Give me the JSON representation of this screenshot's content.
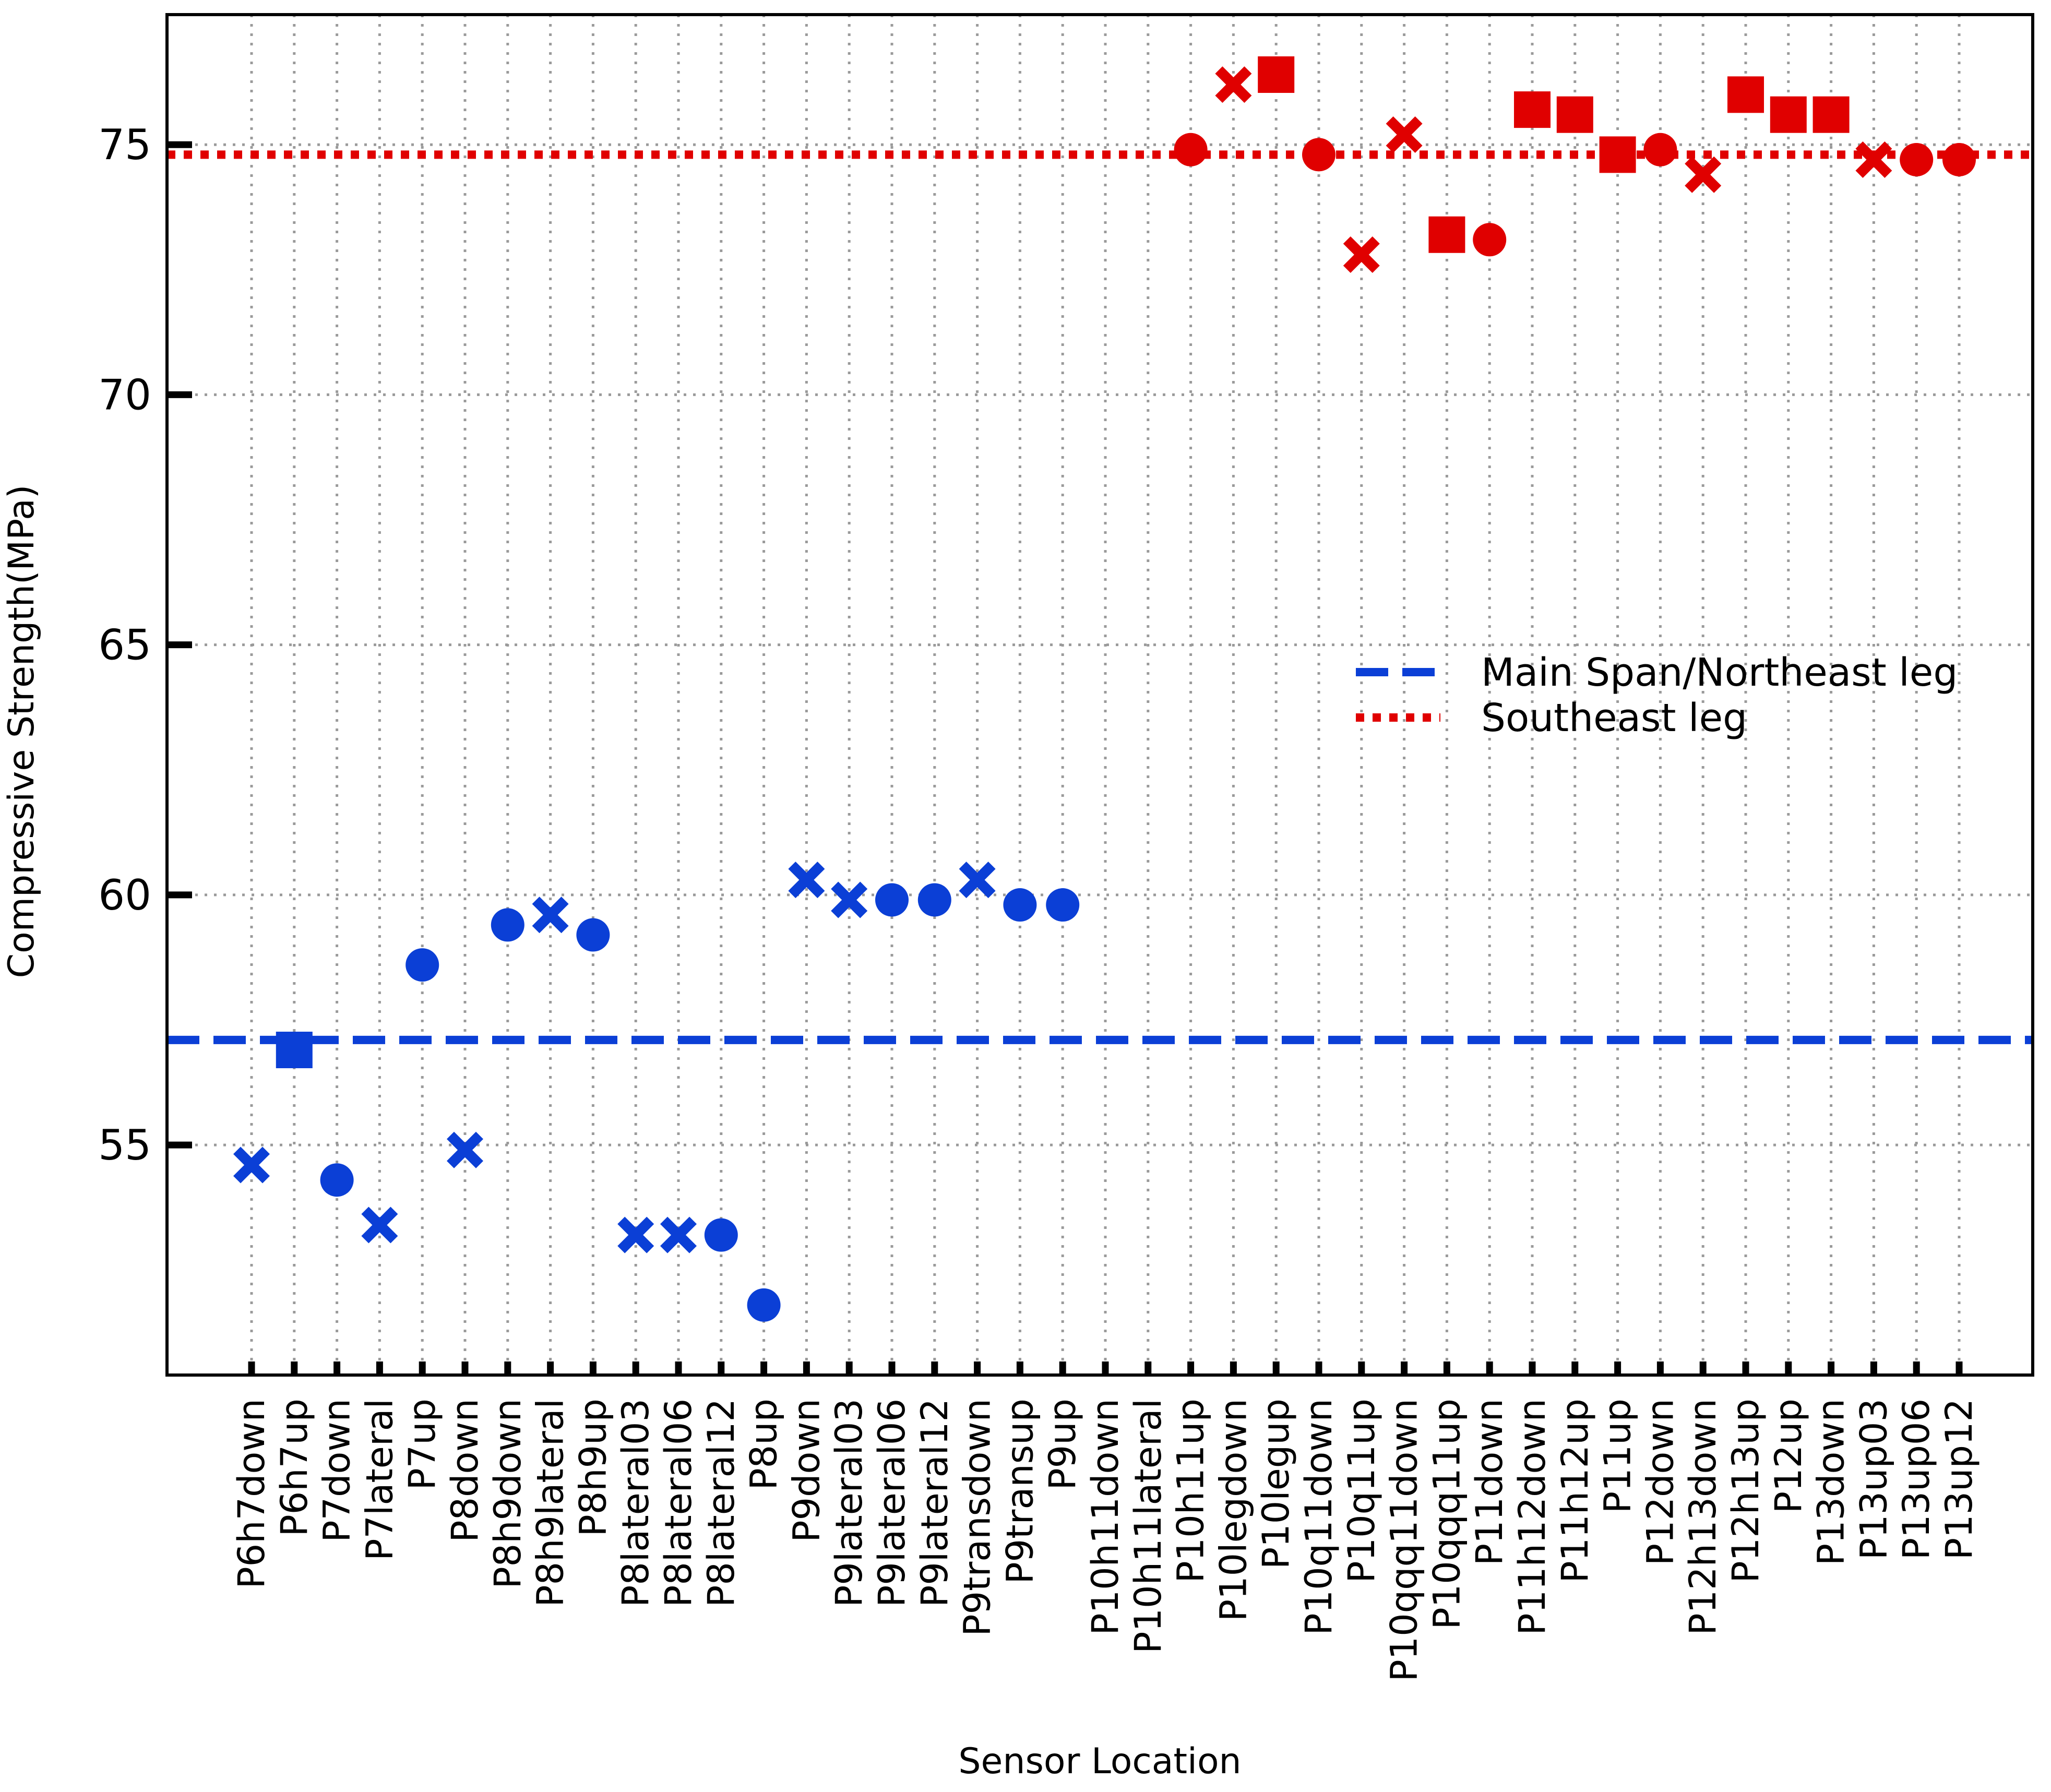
{
  "chart_data": {
    "type": "scatter",
    "xlabel": "Sensor Location",
    "ylabel": "Compressive Strength(MPa)",
    "ylim": [
      50.4,
      77.6
    ],
    "yticks": [
      55,
      60,
      65,
      70,
      75
    ],
    "grid": true,
    "legend_position": "right",
    "categories": [
      "P6h7down",
      "P6h7up",
      "P7down",
      "P7lateral",
      "P7up",
      "P8down",
      "P8h9down",
      "P8h9lateral",
      "P8h9up",
      "P8lateral03",
      "P8lateral06",
      "P8lateral12",
      "P8up",
      "P9down",
      "P9lateral03",
      "P9lateral06",
      "P9lateral12",
      "P9transdown",
      "P9transup",
      "P9up",
      "P10h11down",
      "P10h11lateral",
      "P10h11up",
      "P10legdown",
      "P10legup",
      "P10q11down",
      "P10q11up",
      "P10qqq11down",
      "P10qqq11up",
      "P11down",
      "P11h12down",
      "P11h12up",
      "P11up",
      "P12down",
      "P12h13down",
      "P12h13up",
      "P12up",
      "P13down",
      "P13up03",
      "P13up06",
      "P13up12"
    ],
    "reference_lines": [
      {
        "name": "Main Span/Northeast leg",
        "value": 57.1,
        "style": "dashed",
        "color": "#0b3fd6"
      },
      {
        "name": "Southeast leg",
        "value": 74.8,
        "style": "dotted",
        "color": "#e00000"
      }
    ],
    "series": [
      {
        "color": "#0b3fd6",
        "points": [
          {
            "x": "P6h7down",
            "y": 54.6,
            "marker": "x"
          },
          {
            "x": "P6h7up",
            "y": 56.9,
            "marker": "square"
          },
          {
            "x": "P7down",
            "y": 54.3,
            "marker": "circle"
          },
          {
            "x": "P7lateral",
            "y": 53.4,
            "marker": "x"
          },
          {
            "x": "P7up",
            "y": 58.6,
            "marker": "circle"
          },
          {
            "x": "P8down",
            "y": 54.9,
            "marker": "x"
          },
          {
            "x": "P8h9down",
            "y": 59.4,
            "marker": "circle"
          },
          {
            "x": "P8h9lateral",
            "y": 59.6,
            "marker": "x"
          },
          {
            "x": "P8h9up",
            "y": 59.2,
            "marker": "circle"
          },
          {
            "x": "P8lateral03",
            "y": 53.2,
            "marker": "x"
          },
          {
            "x": "P8lateral06",
            "y": 53.2,
            "marker": "x"
          },
          {
            "x": "P8lateral12",
            "y": 53.2,
            "marker": "circle"
          },
          {
            "x": "P8up",
            "y": 51.8,
            "marker": "circle"
          },
          {
            "x": "P9down",
            "y": 60.3,
            "marker": "x"
          },
          {
            "x": "P9lateral03",
            "y": 59.9,
            "marker": "x"
          },
          {
            "x": "P9lateral06",
            "y": 59.9,
            "marker": "circle"
          },
          {
            "x": "P9lateral12",
            "y": 59.9,
            "marker": "circle"
          },
          {
            "x": "P9transdown",
            "y": 60.3,
            "marker": "x"
          },
          {
            "x": "P9transup",
            "y": 59.8,
            "marker": "circle"
          },
          {
            "x": "P9up",
            "y": 59.8,
            "marker": "circle"
          }
        ]
      },
      {
        "color": "#e00000",
        "points": [
          {
            "x": "P10h11up",
            "y": 74.9,
            "marker": "circle"
          },
          {
            "x": "P10legdown",
            "y": 76.2,
            "marker": "x"
          },
          {
            "x": "P10legup",
            "y": 76.4,
            "marker": "square"
          },
          {
            "x": "P10q11down",
            "y": 74.8,
            "marker": "circle"
          },
          {
            "x": "P10q11up",
            "y": 72.8,
            "marker": "x"
          },
          {
            "x": "P10qqq11down",
            "y": 75.2,
            "marker": "x"
          },
          {
            "x": "P10qqq11up",
            "y": 73.2,
            "marker": "square"
          },
          {
            "x": "P11down",
            "y": 73.1,
            "marker": "circle"
          },
          {
            "x": "P11h12down",
            "y": 75.7,
            "marker": "square"
          },
          {
            "x": "P11h12up",
            "y": 75.6,
            "marker": "square"
          },
          {
            "x": "P11up",
            "y": 74.8,
            "marker": "square"
          },
          {
            "x": "P12down",
            "y": 74.9,
            "marker": "circle"
          },
          {
            "x": "P12h13down",
            "y": 74.4,
            "marker": "x"
          },
          {
            "x": "P12h13up",
            "y": 76.0,
            "marker": "square"
          },
          {
            "x": "P12up",
            "y": 75.6,
            "marker": "square"
          },
          {
            "x": "P13down",
            "y": 75.6,
            "marker": "square"
          },
          {
            "x": "P13up03",
            "y": 74.7,
            "marker": "x"
          },
          {
            "x": "P13up06",
            "y": 74.7,
            "marker": "circle"
          },
          {
            "x": "P13up12",
            "y": 74.7,
            "marker": "circle"
          }
        ]
      }
    ]
  }
}
